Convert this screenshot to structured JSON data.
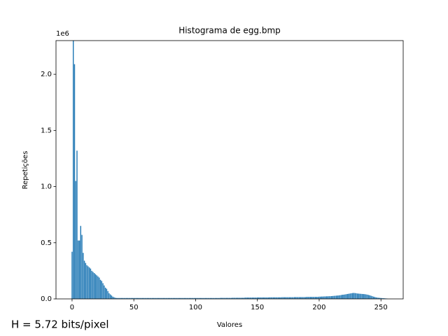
{
  "chart_data": {
    "type": "bar",
    "title": "Histograma de egg.bmp",
    "xlabel": "Valores",
    "ylabel": "Repetições",
    "y_offset_label": "1e6",
    "annotation": "H = 5.72 bits/pixel",
    "color": "#1f77b4",
    "bar_width": 0.8,
    "xlim": [
      -13,
      268
    ],
    "ylim": [
      0,
      2.3
    ],
    "xticks": [
      0,
      50,
      100,
      150,
      200,
      250
    ],
    "yticks": [
      {
        "value": 0,
        "label": "0.0"
      },
      0.5,
      {
        "value": 1,
        "label": "1.0"
      },
      1.5,
      {
        "value": 2,
        "label": "2.0"
      }
    ],
    "x": [
      0,
      1,
      2,
      3,
      4,
      5,
      6,
      7,
      8,
      9,
      10,
      11,
      12,
      13,
      14,
      15,
      16,
      17,
      18,
      19,
      20,
      21,
      22,
      23,
      24,
      25,
      26,
      27,
      28,
      29,
      30,
      31,
      32,
      33,
      34,
      35,
      36,
      37,
      38,
      39,
      40,
      41,
      42,
      43,
      44,
      45,
      46,
      47,
      48,
      49,
      50,
      51,
      52,
      53,
      54,
      55,
      56,
      57,
      58,
      59,
      60,
      61,
      62,
      63,
      64,
      65,
      66,
      67,
      68,
      69,
      70,
      71,
      72,
      73,
      74,
      75,
      76,
      77,
      78,
      79,
      80,
      81,
      82,
      83,
      84,
      85,
      86,
      87,
      88,
      89,
      90,
      91,
      92,
      93,
      94,
      95,
      96,
      97,
      98,
      99,
      100,
      101,
      102,
      103,
      104,
      105,
      106,
      107,
      108,
      109,
      110,
      111,
      112,
      113,
      114,
      115,
      116,
      117,
      118,
      119,
      120,
      121,
      122,
      123,
      124,
      125,
      126,
      127,
      128,
      129,
      130,
      131,
      132,
      133,
      134,
      135,
      136,
      137,
      138,
      139,
      140,
      141,
      142,
      143,
      144,
      145,
      146,
      147,
      148,
      149,
      150,
      151,
      152,
      153,
      154,
      155,
      156,
      157,
      158,
      159,
      160,
      161,
      162,
      163,
      164,
      165,
      166,
      167,
      168,
      169,
      170,
      171,
      172,
      173,
      174,
      175,
      176,
      177,
      178,
      179,
      180,
      181,
      182,
      183,
      184,
      185,
      186,
      187,
      188,
      189,
      190,
      191,
      192,
      193,
      194,
      195,
      196,
      197,
      198,
      199,
      200,
      201,
      202,
      203,
      204,
      205,
      206,
      207,
      208,
      209,
      210,
      211,
      212,
      213,
      214,
      215,
      216,
      217,
      218,
      219,
      220,
      221,
      222,
      223,
      224,
      225,
      226,
      227,
      228,
      229,
      230,
      231,
      232,
      233,
      234,
      235,
      236,
      237,
      238,
      239,
      240,
      241,
      242,
      243,
      244,
      245,
      246,
      247,
      248,
      249,
      250,
      251,
      252,
      253,
      254,
      255
    ],
    "values": [
      0.42,
      2.3,
      2.09,
      1.05,
      1.32,
      0.52,
      0.52,
      0.65,
      0.57,
      0.41,
      0.34,
      0.32,
      0.3,
      0.29,
      0.28,
      0.27,
      0.25,
      0.24,
      0.23,
      0.22,
      0.21,
      0.2,
      0.19,
      0.17,
      0.16,
      0.14,
      0.12,
      0.1,
      0.09,
      0.07,
      0.05,
      0.04,
      0.03,
      0.02,
      0.015,
      0.01,
      0.008,
      0.008,
      0.008,
      0.008,
      0.008,
      0.008,
      0.008,
      0.008,
      0.008,
      0.008,
      0.008,
      0.008,
      0.008,
      0.008,
      0.008,
      0.008,
      0.008,
      0.008,
      0.008,
      0.008,
      0.008,
      0.008,
      0.008,
      0.008,
      0.008,
      0.008,
      0.008,
      0.008,
      0.008,
      0.008,
      0.008,
      0.008,
      0.008,
      0.008,
      0.008,
      0.008,
      0.008,
      0.008,
      0.008,
      0.008,
      0.008,
      0.008,
      0.008,
      0.008,
      0.008,
      0.008,
      0.008,
      0.008,
      0.008,
      0.008,
      0.008,
      0.008,
      0.008,
      0.008,
      0.008,
      0.008,
      0.008,
      0.008,
      0.008,
      0.008,
      0.008,
      0.008,
      0.008,
      0.008,
      0.008,
      0.008,
      0.008,
      0.008,
      0.008,
      0.008,
      0.008,
      0.008,
      0.008,
      0.008,
      0.008,
      0.008,
      0.008,
      0.008,
      0.008,
      0.008,
      0.008,
      0.008,
      0.008,
      0.008,
      0.009,
      0.009,
      0.009,
      0.009,
      0.009,
      0.009,
      0.009,
      0.009,
      0.009,
      0.009,
      0.01,
      0.01,
      0.01,
      0.01,
      0.01,
      0.01,
      0.01,
      0.01,
      0.01,
      0.01,
      0.012,
      0.012,
      0.012,
      0.012,
      0.012,
      0.012,
      0.012,
      0.012,
      0.012,
      0.012,
      0.013,
      0.013,
      0.013,
      0.013,
      0.013,
      0.013,
      0.013,
      0.013,
      0.013,
      0.013,
      0.014,
      0.014,
      0.014,
      0.014,
      0.014,
      0.014,
      0.014,
      0.014,
      0.014,
      0.014,
      0.015,
      0.015,
      0.015,
      0.015,
      0.015,
      0.015,
      0.015,
      0.015,
      0.015,
      0.015,
      0.016,
      0.016,
      0.016,
      0.016,
      0.016,
      0.016,
      0.016,
      0.016,
      0.016,
      0.016,
      0.018,
      0.018,
      0.018,
      0.018,
      0.018,
      0.018,
      0.018,
      0.018,
      0.018,
      0.018,
      0.02,
      0.02,
      0.021,
      0.021,
      0.022,
      0.022,
      0.023,
      0.023,
      0.024,
      0.024,
      0.025,
      0.026,
      0.027,
      0.028,
      0.029,
      0.03,
      0.031,
      0.033,
      0.035,
      0.037,
      0.038,
      0.04,
      0.042,
      0.044,
      0.046,
      0.048,
      0.05,
      0.052,
      0.053,
      0.052,
      0.05,
      0.048,
      0.047,
      0.046,
      0.045,
      0.044,
      0.043,
      0.042,
      0.04,
      0.038,
      0.035,
      0.032,
      0.028,
      0.024,
      0.02,
      0.017,
      0.014,
      0.012,
      0.01,
      0.009,
      0.008,
      0.007,
      0.006,
      0.005,
      0.004,
      0.003
    ]
  }
}
